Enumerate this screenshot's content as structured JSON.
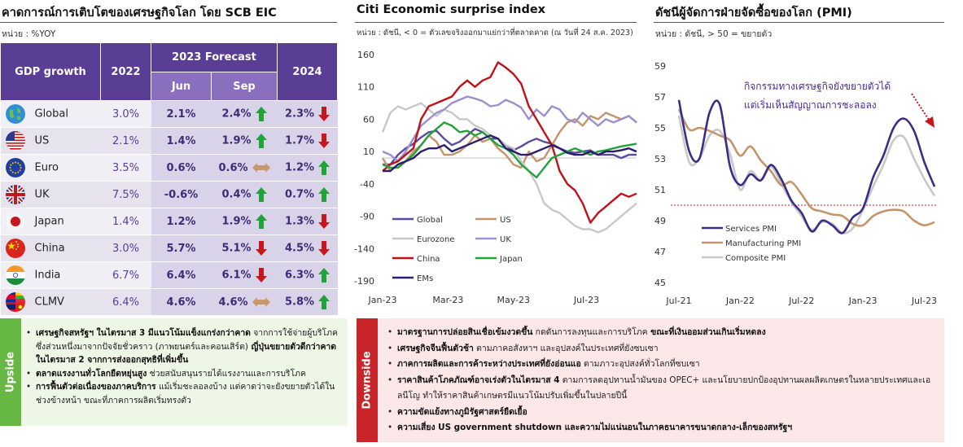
{
  "panels": {
    "gdp": {
      "title": "คาดการณ์การเติบโตของเศรษฐกิจโลก โดย SCB EIC",
      "unit": "หน่วย : %YOY",
      "table": {
        "col_label": "GDP growth",
        "col_2022": "2022",
        "col_forecast": "2023 Forecast",
        "col_jun": "Jun",
        "col_sep": "Sep",
        "col_2024": "2024",
        "rows": [
          {
            "name": "Global",
            "flag": "globe-icon",
            "v2022": "3.0%",
            "jun": "2.1%",
            "sep": "2.4%",
            "sep_dir": "up",
            "v2024": "2.3%",
            "v2024_dir": "down"
          },
          {
            "name": "US",
            "flag": "us-flag-icon",
            "v2022": "2.1%",
            "jun": "1.4%",
            "sep": "1.9%",
            "sep_dir": "up",
            "v2024": "1.7%",
            "v2024_dir": "down"
          },
          {
            "name": "Euro",
            "flag": "eu-flag-icon",
            "v2022": "3.5%",
            "jun": "0.6%",
            "sep": "0.6%",
            "sep_dir": "flat",
            "v2024": "1.2%",
            "v2024_dir": "up"
          },
          {
            "name": "UK",
            "flag": "uk-flag-icon",
            "v2022": "7.5%",
            "jun": "-0.6%",
            "sep": "0.4%",
            "sep_dir": "up",
            "v2024": "0.7%",
            "v2024_dir": "up"
          },
          {
            "name": "Japan",
            "flag": "japan-flag-icon",
            "v2022": "1.4%",
            "jun": "1.2%",
            "sep": "1.9%",
            "sep_dir": "up",
            "v2024": "1.3%",
            "v2024_dir": "down"
          },
          {
            "name": "China",
            "flag": "china-flag-icon",
            "v2022": "3.0%",
            "jun": "5.7%",
            "sep": "5.1%",
            "sep_dir": "down",
            "v2024": "4.5%",
            "v2024_dir": "down"
          },
          {
            "name": "India",
            "flag": "india-flag-icon",
            "v2022": "6.7%",
            "jun": "6.4%",
            "sep": "6.1%",
            "sep_dir": "down",
            "v2024": "6.3%",
            "v2024_dir": "up"
          },
          {
            "name": "CLMV",
            "flag": "clmv-flags-icon",
            "v2022": "6.4%",
            "jun": "4.6%",
            "sep": "4.6%",
            "sep_dir": "flat",
            "v2024": "5.8%",
            "v2024_dir": "up"
          }
        ]
      }
    },
    "citi": {
      "title": "Citi Economic surprise index",
      "unit": "หน่วย : ดัชนี, < 0 = ตัวเลขจริงออกมาแย่กว่าที่ตลาดคาด (ณ วันที่ 24 ส.ค. 2023)"
    },
    "pmi": {
      "title": "ดัชนีผู้จัดการฝ่ายจัดซื้อของโลก (PMI)",
      "unit": "หน่วย : ดัชนี, > 50 = ขยายตัว",
      "annotation_1": "กิจกรรมทางเศรษฐกิจยังขยายตัวได้",
      "annotation_2": "แต่เริ่มเห็นสัญญาณการชะลอลง"
    }
  },
  "upside": {
    "label": "Upside",
    "items": [
      {
        "bold": "เศรษฐกิจสหรัฐฯ ในไตรมาส 3 มีแนวโน้มแข็งแกร่งกว่าคาด",
        "text": " จากการใช้จ่ายผู้บริโภค ซึ่งส่วนหนึ่งมาจากปัจจัยชั่วคราว (ภาพยนตร์และคอนเสิร์ต)",
        "bold2": " ญี่ปุ่นขยายตัวดีกว่าคาดในไตรมาส 2 จากการส่งออกสุทธิที่เพิ่มขึ้น"
      },
      {
        "bold": "ตลาดแรงงานทั่วโลกยืดหยุ่นสูง",
        "text": " ช่วยสนับสนุนรายได้แรงงานและการบริโภค",
        "bold2": ""
      },
      {
        "bold": "การฟื้นตัวต่อเนื่องของภาคบริการ",
        "text": " แม้เริ่มชะลอลงบ้าง แต่คาดว่าจะยังขยายตัวได้ในช่วงข้างหน้า ขณะที่ภาคการผลิตเริ่มทรงตัว",
        "bold2": ""
      }
    ]
  },
  "downside": {
    "label": "Downside",
    "items": [
      {
        "bold": "มาตรฐานการปล่อยสินเชื่อเข้มงวดขึ้น",
        "text": " กดดันการลงทุนและการบริโภค",
        "bold2": " ขณะที่เงินออมส่วนเกินเริ่มหดลง"
      },
      {
        "bold": "เศรษฐกิจจีนฟื้นตัวช้า",
        "text": " ตามภาคอสังหาฯ และอุปสงค์ในประเทศที่ยังซบเซา",
        "bold2": ""
      },
      {
        "bold": "ภาคการผลิตและการค้าระหว่างประเทศที่ยังอ่อนแอ",
        "text": " ตามภาวะอุปสงค์ทั่วโลกที่ซบเซา",
        "bold2": ""
      },
      {
        "bold": "ราคาสินค้าโภคภัณฑ์อาจเร่งตัวในไตรมาส 4",
        "text": " ตามการลดอุปทานน้ำมันของ OPEC+ และนโยบายปกป้องอุปทานผลผลิตเกษตรในหลายประเทศและเอลนีโญ ทำให้ราคาสินค้าเกษตรมีแนวโน้มปรับเพิ่มขึ้นในปลายปีนี้",
        "bold2": ""
      },
      {
        "bold": "ความขัดแย้งทางภูมิรัฐศาสตร์ยืดเยื้อ",
        "text": "",
        "bold2": ""
      },
      {
        "bold": "ความเสี่ยง US government shutdown และความไม่แน่นอนในภาคธนาคารขนาดกลาง-เล็กของสหรัฐฯ",
        "text": "",
        "bold2": ""
      }
    ]
  },
  "colors": {
    "header_purple": "#5a3d95",
    "up_arrow": "#22a33a",
    "down_arrow": "#c8161d",
    "flat_arrow": "#c8986a",
    "upside_green": "#67b744",
    "downside_red": "#c8252b",
    "downside_bg": "#fbe7e7",
    "upside_bg": "#eef6e6"
  },
  "chart_data": [
    {
      "type": "line",
      "ylim": [
        -190,
        160
      ],
      "yticks": [
        160,
        110,
        60,
        10,
        -40,
        -90,
        -140,
        -190
      ],
      "xtick_labels": [
        "Jan-23",
        "Mar-23",
        "May-23",
        "Jul-23"
      ],
      "xtick_weeks": [
        0,
        8.5,
        17,
        26.5
      ],
      "x_weeks": [
        0,
        1,
        2,
        3,
        4,
        5,
        6,
        7,
        8,
        9,
        10,
        11,
        12,
        13,
        14,
        15,
        16,
        17,
        18,
        19,
        20,
        21,
        22,
        23,
        24,
        25,
        26,
        27,
        28,
        29,
        30,
        31,
        32,
        33
      ],
      "legend": "inside-bottom-left",
      "series": [
        {
          "name": "Global",
          "color": "#5b4a9e",
          "values": [
            -10,
            -10,
            5,
            15,
            22,
            32,
            40,
            42,
            30,
            20,
            25,
            35,
            45,
            40,
            30,
            30,
            20,
            12,
            18,
            25,
            30,
            25,
            22,
            15,
            10,
            8,
            10,
            12,
            5,
            5,
            5,
            0,
            5,
            5
          ]
        },
        {
          "name": "US",
          "color": "#c4956b",
          "values": [
            0,
            -20,
            -10,
            -5,
            10,
            20,
            35,
            25,
            5,
            5,
            10,
            20,
            35,
            25,
            30,
            15,
            5,
            -10,
            -15,
            10,
            -5,
            0,
            20,
            40,
            55,
            60,
            50,
            65,
            60,
            70,
            65,
            60,
            65,
            55
          ]
        },
        {
          "name": "Eurozone",
          "color": "#c8c8c8",
          "values": [
            40,
            70,
            80,
            75,
            80,
            85,
            75,
            65,
            75,
            70,
            60,
            60,
            50,
            45,
            35,
            30,
            20,
            15,
            -5,
            -20,
            -40,
            -70,
            -80,
            -85,
            -95,
            -105,
            -110,
            -110,
            -115,
            -110,
            -100,
            -90,
            -80,
            -70
          ]
        },
        {
          "name": "UK",
          "color": "#9b8fce",
          "values": [
            10,
            5,
            -5,
            10,
            30,
            50,
            60,
            70,
            75,
            85,
            90,
            95,
            92,
            88,
            80,
            82,
            90,
            85,
            78,
            60,
            75,
            65,
            80,
            75,
            60,
            55,
            70,
            60,
            50,
            60,
            55,
            60,
            65,
            55
          ]
        },
        {
          "name": "China",
          "color": "#c0101a",
          "values": [
            -20,
            -10,
            -5,
            5,
            15,
            60,
            80,
            85,
            90,
            95,
            110,
            120,
            110,
            120,
            125,
            148,
            140,
            130,
            115,
            80,
            60,
            40,
            20,
            -20,
            -40,
            -50,
            -70,
            -100,
            -85,
            -75,
            -65,
            -55,
            -60,
            -55
          ]
        },
        {
          "name": "Japan",
          "color": "#22a33a",
          "values": [
            -10,
            -15,
            -15,
            -5,
            5,
            20,
            35,
            45,
            55,
            50,
            40,
            42,
            35,
            40,
            30,
            20,
            15,
            5,
            -10,
            -20,
            -30,
            -15,
            0,
            5,
            10,
            15,
            10,
            5,
            10,
            12,
            15,
            18,
            20,
            22
          ]
        },
        {
          "name": "EMs",
          "color": "#2b1d6a",
          "values": [
            -20,
            -20,
            -10,
            -5,
            0,
            10,
            15,
            15,
            20,
            10,
            15,
            20,
            25,
            30,
            35,
            30,
            15,
            10,
            5,
            5,
            10,
            15,
            20,
            15,
            8,
            5,
            5,
            10,
            5,
            10,
            10,
            12,
            15,
            10
          ]
        }
      ]
    },
    {
      "type": "line",
      "ylim": [
        45,
        59
      ],
      "yticks": [
        45,
        47,
        49,
        51,
        53,
        55,
        57,
        59
      ],
      "xtick_labels": [
        "Jul-21",
        "Jan-22",
        "Jul-22",
        "Jan-23",
        "Jul-23"
      ],
      "xtick_months": [
        0,
        6,
        12,
        18,
        24
      ],
      "reference_line": 50,
      "legend": "inside-bottom-left",
      "x_months": [
        0,
        1,
        2,
        3,
        4,
        5,
        6,
        7,
        8,
        9,
        10,
        11,
        12,
        13,
        14,
        15,
        16,
        17,
        18,
        19,
        20,
        21,
        22,
        23,
        24,
        25
      ],
      "series": [
        {
          "name": "Services PMI",
          "color": "#3d2c86",
          "values": [
            56.8,
            53.5,
            53.0,
            56.0,
            56.5,
            52.5,
            51.3,
            52.0,
            51.6,
            52.6,
            51.7,
            50.3,
            49.5,
            48.3,
            49.0,
            48.7,
            48.2,
            49.2,
            49.8,
            51.8,
            53.2,
            55.0,
            55.6,
            54.8,
            52.8,
            51.2
          ]
        },
        {
          "name": "Manufacturing PMI",
          "color": "#c4956b",
          "values": [
            56.2,
            54.9,
            55.0,
            54.8,
            54.5,
            54.2,
            53.2,
            53.8,
            52.9,
            52.2,
            51.3,
            51.5,
            50.7,
            49.8,
            49.6,
            49.4,
            49.3,
            48.8,
            48.7,
            49.3,
            49.6,
            49.7,
            49.6,
            49.0,
            48.7,
            48.9
          ]
        },
        {
          "name": "Composite PMI",
          "color": "#c8c8c8",
          "values": [
            55.8,
            52.8,
            53.0,
            54.5,
            54.8,
            53.3,
            51.0,
            52.2,
            51.6,
            52.5,
            51.4,
            50.2,
            49.3,
            48.4,
            48.9,
            48.8,
            48.2,
            48.5,
            49.7,
            51.2,
            52.6,
            54.2,
            54.4,
            53.0,
            51.7,
            50.6
          ]
        }
      ]
    }
  ]
}
